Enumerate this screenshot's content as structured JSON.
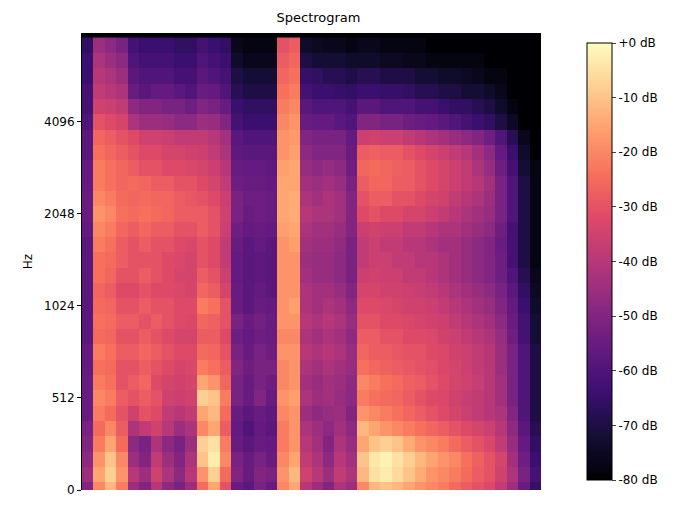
{
  "chart_data": {
    "type": "heatmap",
    "title": "Spectrogram",
    "y_label": "Hz",
    "log": "y",
    "tick_labels": "y",
    "ylim": [
      0,
      8000
    ],
    "yticks": [
      0,
      512,
      1024,
      2048,
      4096
    ],
    "y": [
      0,
      85,
      171,
      256,
      341,
      427,
      512,
      575,
      645,
      724,
      813,
      912,
      1024,
      1149,
      1290,
      1448,
      1625,
      1825,
      2048,
      2299,
      2580,
      2896,
      3251,
      3649,
      4096,
      4598,
      5161,
      5793,
      6502,
      7298
    ],
    "color_range": [
      -80,
      0
    ],
    "color_ticks": [
      {
        "value": 0,
        "label": "+0 dB"
      },
      {
        "value": -10,
        "label": "-10 dB"
      },
      {
        "value": -20,
        "label": "-20 dB"
      },
      {
        "value": -30,
        "label": "-30 dB"
      },
      {
        "value": -40,
        "label": "-40 dB"
      },
      {
        "value": -50,
        "label": "-50 dB"
      },
      {
        "value": -60,
        "label": "-60 dB"
      },
      {
        "value": -70,
        "label": "-70 dB"
      },
      {
        "value": -80,
        "label": "-80 dB"
      }
    ],
    "z": [
      [
        -50,
        -20,
        -12,
        -22,
        -45,
        -50,
        -40,
        -48,
        -52,
        -45,
        -25,
        -15,
        -30,
        -55,
        -58,
        -52,
        -55,
        -20,
        -15,
        -40,
        -45,
        -50,
        -42,
        -45,
        -20,
        -12,
        -10,
        -12,
        -15,
        -18,
        -20,
        -22,
        -25,
        -28,
        -30,
        -32,
        -38,
        -45,
        -55,
        -65
      ],
      [
        -45,
        -15,
        -8,
        -18,
        -40,
        -45,
        -35,
        -42,
        -48,
        -40,
        -18,
        -8,
        -25,
        -50,
        -55,
        -50,
        -52,
        -18,
        -12,
        -35,
        -40,
        -45,
        -38,
        -42,
        -12,
        -5,
        -3,
        -6,
        -10,
        -14,
        -18,
        -20,
        -22,
        -25,
        -28,
        -30,
        -35,
        -42,
        -52,
        -62
      ],
      [
        -48,
        -18,
        -10,
        -20,
        -45,
        -50,
        -38,
        -45,
        -50,
        -42,
        -10,
        -3,
        -20,
        -52,
        -55,
        -52,
        -55,
        -20,
        -15,
        -38,
        -42,
        -48,
        -40,
        -44,
        -10,
        -4,
        -2,
        -5,
        -8,
        -12,
        -15,
        -18,
        -20,
        -24,
        -27,
        -30,
        -34,
        -44,
        -54,
        -64
      ],
      [
        -50,
        -22,
        -15,
        -25,
        -48,
        -52,
        -42,
        -48,
        -52,
        -45,
        -8,
        -5,
        -22,
        -55,
        -58,
        -55,
        -56,
        -22,
        -18,
        -40,
        -44,
        -50,
        -42,
        -46,
        -15,
        -10,
        -8,
        -10,
        -14,
        -18,
        -20,
        -22,
        -25,
        -28,
        -30,
        -33,
        -38,
        -46,
        -56,
        -66
      ],
      [
        -52,
        -25,
        -20,
        -28,
        -42,
        -38,
        -35,
        -40,
        -45,
        -42,
        -20,
        -15,
        -28,
        -56,
        -60,
        -56,
        -58,
        -22,
        -18,
        -42,
        -45,
        -48,
        -44,
        -48,
        -12,
        -15,
        -18,
        -20,
        -22,
        -24,
        -26,
        -28,
        -30,
        -32,
        -34,
        -36,
        -40,
        -48,
        -58,
        -68
      ],
      [
        -55,
        -22,
        -25,
        -30,
        -35,
        -30,
        -32,
        -38,
        -40,
        -38,
        -15,
        -12,
        -25,
        -55,
        -58,
        -55,
        -57,
        -20,
        -18,
        -45,
        -48,
        -46,
        -45,
        -50,
        -18,
        -20,
        -22,
        -24,
        -26,
        -28,
        -30,
        -32,
        -34,
        -36,
        -38,
        -40,
        -42,
        -50,
        -60,
        -70
      ],
      [
        -55,
        -20,
        -22,
        -28,
        -30,
        -28,
        -30,
        -35,
        -36,
        -35,
        -8,
        -10,
        -22,
        -52,
        -55,
        -50,
        -55,
        -18,
        -16,
        -42,
        -45,
        -44,
        -46,
        -48,
        -22,
        -24,
        -25,
        -26,
        -28,
        -30,
        -32,
        -33,
        -35,
        -37,
        -38,
        -40,
        -44,
        -52,
        -60,
        -70
      ],
      [
        -55,
        -22,
        -24,
        -30,
        -28,
        -26,
        -32,
        -34,
        -35,
        -34,
        -15,
        -18,
        -26,
        -52,
        -55,
        -52,
        -54,
        -20,
        -18,
        -44,
        -46,
        -44,
        -45,
        -48,
        -20,
        -22,
        -24,
        -25,
        -27,
        -28,
        -30,
        -32,
        -34,
        -35,
        -37,
        -40,
        -44,
        -52,
        -60,
        -70
      ],
      [
        -56,
        -24,
        -25,
        -30,
        -30,
        -28,
        -30,
        -32,
        -34,
        -33,
        -22,
        -24,
        -28,
        -50,
        -54,
        -52,
        -52,
        -20,
        -18,
        -42,
        -44,
        -42,
        -44,
        -46,
        -24,
        -26,
        -27,
        -28,
        -29,
        -30,
        -31,
        -33,
        -34,
        -36,
        -38,
        -40,
        -45,
        -52,
        -60,
        -70
      ],
      [
        -56,
        -22,
        -24,
        -28,
        -28,
        -26,
        -28,
        -30,
        -32,
        -32,
        -25,
        -26,
        -30,
        -52,
        -55,
        -52,
        -54,
        -18,
        -18,
        -40,
        -42,
        -40,
        -42,
        -46,
        -26,
        -28,
        -28,
        -29,
        -30,
        -30,
        -32,
        -33,
        -35,
        -36,
        -38,
        -40,
        -45,
        -52,
        -60,
        -70
      ],
      [
        -58,
        -25,
        -26,
        -30,
        -30,
        -28,
        -30,
        -32,
        -34,
        -34,
        -28,
        -28,
        -32,
        -54,
        -56,
        -54,
        -55,
        -20,
        -20,
        -42,
        -44,
        -42,
        -44,
        -48,
        -28,
        -28,
        -30,
        -30,
        -32,
        -32,
        -33,
        -35,
        -36,
        -38,
        -40,
        -42,
        -46,
        -54,
        -62,
        -72
      ],
      [
        -58,
        -24,
        -25,
        -28,
        -28,
        -30,
        -28,
        -30,
        -32,
        -33,
        -26,
        -27,
        -30,
        -52,
        -55,
        -53,
        -55,
        -18,
        -18,
        -40,
        -42,
        -40,
        -42,
        -46,
        -30,
        -30,
        -32,
        -32,
        -33,
        -34,
        -35,
        -36,
        -38,
        -40,
        -42,
        -44,
        -48,
        -55,
        -62,
        -72
      ],
      [
        -58,
        -25,
        -26,
        -30,
        -30,
        -28,
        -30,
        -30,
        -32,
        -32,
        -22,
        -24,
        -30,
        -55,
        -58,
        -55,
        -56,
        -18,
        -16,
        -42,
        -44,
        -42,
        -44,
        -48,
        -32,
        -32,
        -33,
        -34,
        -35,
        -35,
        -36,
        -38,
        -40,
        -42,
        -44,
        -46,
        -50,
        -56,
        -64,
        -74
      ],
      [
        -58,
        -26,
        -28,
        -32,
        -32,
        -30,
        -32,
        -32,
        -33,
        -34,
        -26,
        -28,
        -34,
        -55,
        -58,
        -56,
        -58,
        -18,
        -18,
        -42,
        -44,
        -44,
        -46,
        -50,
        -34,
        -34,
        -35,
        -35,
        -36,
        -37,
        -38,
        -40,
        -42,
        -44,
        -46,
        -48,
        -52,
        -58,
        -66,
        -75
      ],
      [
        -58,
        -24,
        -26,
        -30,
        -30,
        -28,
        -30,
        -32,
        -34,
        -34,
        -28,
        -30,
        -36,
        -56,
        -58,
        -57,
        -58,
        -18,
        -18,
        -44,
        -46,
        -46,
        -48,
        -52,
        -36,
        -35,
        -36,
        -36,
        -38,
        -38,
        -40,
        -42,
        -44,
        -46,
        -48,
        -50,
        -54,
        -60,
        -68,
        -76
      ],
      [
        -58,
        -24,
        -25,
        -28,
        -30,
        -30,
        -30,
        -32,
        -33,
        -34,
        -30,
        -32,
        -38,
        -56,
        -58,
        -57,
        -58,
        -18,
        -18,
        -45,
        -46,
        -46,
        -48,
        -52,
        -38,
        -36,
        -36,
        -38,
        -38,
        -40,
        -40,
        -42,
        -44,
        -46,
        -48,
        -50,
        -54,
        -62,
        -70,
        -78
      ],
      [
        -58,
        -22,
        -24,
        -28,
        -30,
        -28,
        -30,
        -30,
        -32,
        -33,
        -30,
        -32,
        -38,
        -55,
        -58,
        -56,
        -58,
        -18,
        -16,
        -44,
        -45,
        -45,
        -47,
        -52,
        -38,
        -36,
        -38,
        -38,
        -40,
        -40,
        -42,
        -44,
        -44,
        -46,
        -48,
        -50,
        -55,
        -62,
        -70,
        -78
      ],
      [
        -56,
        -20,
        -22,
        -26,
        -28,
        -26,
        -28,
        -28,
        -30,
        -30,
        -28,
        -30,
        -36,
        -54,
        -56,
        -55,
        -56,
        -16,
        -15,
        -42,
        -44,
        -44,
        -46,
        -50,
        -36,
        -35,
        -36,
        -36,
        -38,
        -38,
        -40,
        -42,
        -42,
        -44,
        -46,
        -48,
        -54,
        -62,
        -70,
        -78
      ],
      [
        -55,
        -18,
        -20,
        -24,
        -25,
        -24,
        -25,
        -26,
        -28,
        -28,
        -28,
        -30,
        -35,
        -52,
        -55,
        -54,
        -55,
        -15,
        -14,
        -40,
        -42,
        -42,
        -44,
        -50,
        -32,
        -30,
        -32,
        -32,
        -34,
        -34,
        -36,
        -38,
        -40,
        -42,
        -44,
        -46,
        -52,
        -60,
        -70,
        -78
      ],
      [
        -55,
        -20,
        -22,
        -25,
        -26,
        -25,
        -26,
        -26,
        -28,
        -29,
        -30,
        -32,
        -36,
        -52,
        -54,
        -54,
        -55,
        -15,
        -14,
        -42,
        -44,
        -42,
        -44,
        -50,
        -30,
        -28,
        -28,
        -30,
        -30,
        -32,
        -34,
        -35,
        -38,
        -40,
        -42,
        -45,
        -52,
        -60,
        -70,
        -78
      ],
      [
        -56,
        -22,
        -24,
        -26,
        -25,
        -26,
        -28,
        -28,
        -30,
        -30,
        -32,
        -34,
        -38,
        -54,
        -55,
        -55,
        -56,
        -15,
        -15,
        -44,
        -45,
        -44,
        -46,
        -52,
        -28,
        -26,
        -26,
        -28,
        -28,
        -30,
        -32,
        -34,
        -36,
        -38,
        -40,
        -44,
        -52,
        -60,
        -70,
        -78
      ],
      [
        -56,
        -22,
        -24,
        -26,
        -28,
        -30,
        -30,
        -32,
        -32,
        -33,
        -34,
        -36,
        -40,
        -55,
        -56,
        -56,
        -57,
        -16,
        -15,
        -46,
        -48,
        -46,
        -48,
        -54,
        -26,
        -25,
        -26,
        -27,
        -28,
        -30,
        -32,
        -34,
        -36,
        -38,
        -42,
        -46,
        -54,
        -62,
        -72,
        -78
      ],
      [
        -58,
        -24,
        -26,
        -28,
        -30,
        -32,
        -32,
        -34,
        -34,
        -35,
        -36,
        -38,
        -42,
        -57,
        -58,
        -58,
        -58,
        -18,
        -16,
        -48,
        -50,
        -50,
        -50,
        -55,
        -28,
        -27,
        -28,
        -28,
        -30,
        -32,
        -34,
        -36,
        -38,
        -40,
        -44,
        -48,
        -56,
        -64,
        -74,
        -80
      ],
      [
        -58,
        -26,
        -28,
        -30,
        -32,
        -35,
        -35,
        -36,
        -38,
        -38,
        -38,
        -40,
        -44,
        -58,
        -60,
        -60,
        -60,
        -18,
        -17,
        -50,
        -52,
        -52,
        -52,
        -56,
        -36,
        -35,
        -36,
        -36,
        -38,
        -40,
        -42,
        -44,
        -46,
        -48,
        -50,
        -54,
        -60,
        -68,
        -76,
        -80
      ],
      [
        -60,
        -30,
        -32,
        -34,
        -42,
        -45,
        -45,
        -46,
        -48,
        -48,
        -45,
        -46,
        -50,
        -62,
        -64,
        -64,
        -64,
        -20,
        -18,
        -55,
        -56,
        -56,
        -58,
        -60,
        -50,
        -50,
        -52,
        -52,
        -54,
        -55,
        -56,
        -58,
        -60,
        -62,
        -64,
        -66,
        -70,
        -75,
        -80,
        -80
      ],
      [
        -62,
        -35,
        -36,
        -38,
        -48,
        -50,
        -50,
        -52,
        -52,
        -54,
        -50,
        -52,
        -55,
        -64,
        -66,
        -66,
        -66,
        -22,
        -20,
        -58,
        -60,
        -60,
        -60,
        -62,
        -58,
        -58,
        -60,
        -60,
        -60,
        -62,
        -62,
        -64,
        -66,
        -66,
        -68,
        -70,
        -74,
        -78,
        -80,
        -80
      ],
      [
        -62,
        -38,
        -40,
        -42,
        -55,
        -58,
        -56,
        -56,
        -58,
        -60,
        -55,
        -56,
        -60,
        -68,
        -70,
        -70,
        -70,
        -24,
        -22,
        -62,
        -64,
        -64,
        -65,
        -66,
        -64,
        -64,
        -65,
        -65,
        -66,
        -68,
        -68,
        -70,
        -70,
        -72,
        -72,
        -74,
        -76,
        -80,
        -80,
        -80
      ],
      [
        -64,
        -40,
        -42,
        -45,
        -58,
        -60,
        -60,
        -60,
        -62,
        -62,
        -58,
        -60,
        -62,
        -70,
        -72,
        -72,
        -72,
        -26,
        -24,
        -65,
        -66,
        -68,
        -68,
        -70,
        -68,
        -68,
        -70,
        -70,
        -70,
        -72,
        -72,
        -74,
        -74,
        -75,
        -76,
        -78,
        -78,
        -80,
        -80,
        -80
      ],
      [
        -64,
        -42,
        -45,
        -48,
        -60,
        -62,
        -62,
        -62,
        -64,
        -64,
        -60,
        -62,
        -64,
        -74,
        -76,
        -76,
        -76,
        -28,
        -26,
        -70,
        -72,
        -72,
        -72,
        -74,
        -74,
        -74,
        -75,
        -75,
        -76,
        -76,
        -78,
        -78,
        -78,
        -78,
        -78,
        -80,
        -80,
        -80,
        -80,
        -80
      ],
      [
        -66,
        -45,
        -48,
        -52,
        -62,
        -64,
        -64,
        -64,
        -66,
        -66,
        -62,
        -64,
        -66,
        -76,
        -78,
        -78,
        -78,
        -30,
        -28,
        -74,
        -75,
        -76,
        -76,
        -78,
        -76,
        -76,
        -78,
        -78,
        -78,
        -78,
        -80,
        -80,
        -80,
        -80,
        -80,
        -80,
        -80,
        -80,
        -80,
        -80
      ]
    ]
  }
}
